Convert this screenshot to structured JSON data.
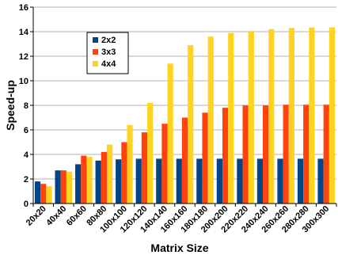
{
  "chart_data": {
    "type": "bar",
    "categories": [
      "20x20",
      "40x40",
      "60x60",
      "80x80",
      "100x100",
      "120x120",
      "140x140",
      "160x160",
      "180x180",
      "200x200",
      "220x220",
      "240x240",
      "260x260",
      "280x280",
      "300x300"
    ],
    "series": [
      {
        "name": "2x2",
        "color": "#004586",
        "values": [
          1.8,
          2.7,
          3.2,
          3.5,
          3.6,
          3.65,
          3.65,
          3.65,
          3.65,
          3.65,
          3.65,
          3.65,
          3.65,
          3.65,
          3.65
        ]
      },
      {
        "name": "3x3",
        "color": "#ff420e",
        "values": [
          1.6,
          2.7,
          3.9,
          4.2,
          5.0,
          5.8,
          6.5,
          7.0,
          7.4,
          7.8,
          8.0,
          8.0,
          8.05,
          8.05,
          8.05
        ]
      },
      {
        "name": "4x4",
        "color": "#ffd320",
        "values": [
          1.4,
          2.6,
          3.8,
          4.8,
          6.4,
          8.2,
          11.4,
          12.9,
          13.6,
          13.9,
          14.0,
          14.2,
          14.3,
          14.35,
          14.35
        ]
      }
    ],
    "xlabel": "Matrix Size",
    "ylabel": "Speed-up",
    "ylim": [
      0,
      16
    ],
    "yticks": [
      0,
      2,
      4,
      6,
      8,
      10,
      12,
      14,
      16
    ],
    "grid": true,
    "legend_position": "top-left inside"
  }
}
